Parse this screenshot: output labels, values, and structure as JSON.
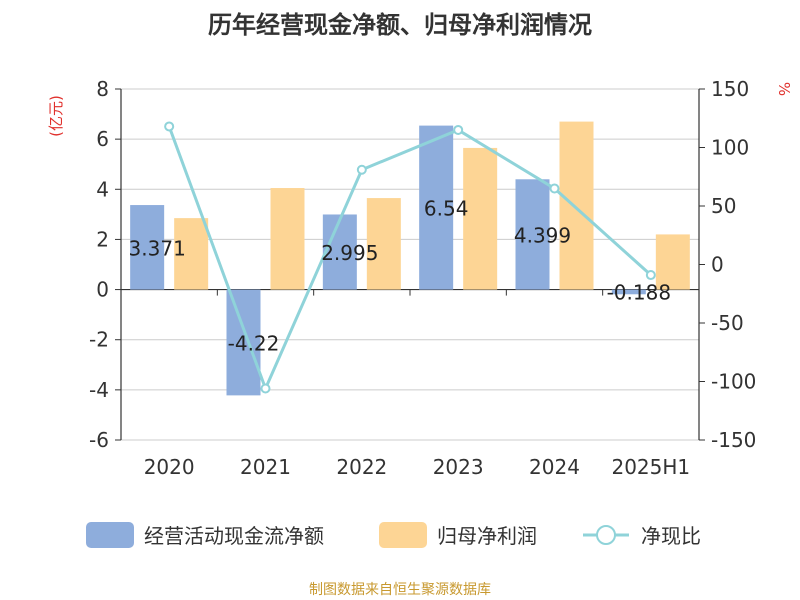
{
  "chart_data": {
    "type": "bar",
    "title": "历年经营现金净额、归母净利润情况",
    "categories": [
      "2020",
      "2021",
      "2022",
      "2023",
      "2024",
      "2025H1"
    ],
    "y_left_unit": "(亿元)",
    "y_right_unit": "%",
    "y_left_ticks": [
      "8",
      "6",
      "4",
      "2",
      "0",
      "-2",
      "-4",
      "-6"
    ],
    "y_right_ticks": [
      "150",
      "100",
      "50",
      "0",
      "-50",
      "-100",
      "-150"
    ],
    "ylim_left": [
      -6,
      8
    ],
    "ylim_right": [
      -150,
      150
    ],
    "series": [
      {
        "name": "经营活动现金流净额",
        "type": "bar",
        "axis": "left",
        "color": "#8eaddc",
        "values": [
          3.371,
          -4.22,
          2.995,
          6.54,
          4.399,
          -0.188
        ],
        "labels": [
          "3.371",
          "-4.22",
          "2.995",
          "6.54",
          "4.399",
          "-0.188"
        ]
      },
      {
        "name": "归母净利润",
        "type": "bar",
        "axis": "left",
        "color": "#fdd595",
        "values": [
          2.85,
          4.05,
          3.65,
          5.65,
          6.7,
          2.2
        ]
      },
      {
        "name": "净现比",
        "type": "line",
        "axis": "right",
        "color": "#8fd3d9",
        "values": [
          118,
          -106,
          81,
          115,
          65,
          -9
        ]
      }
    ],
    "grid": true,
    "legend_position": "bottom"
  },
  "source_text": "制图数据来自恒生聚源数据库"
}
